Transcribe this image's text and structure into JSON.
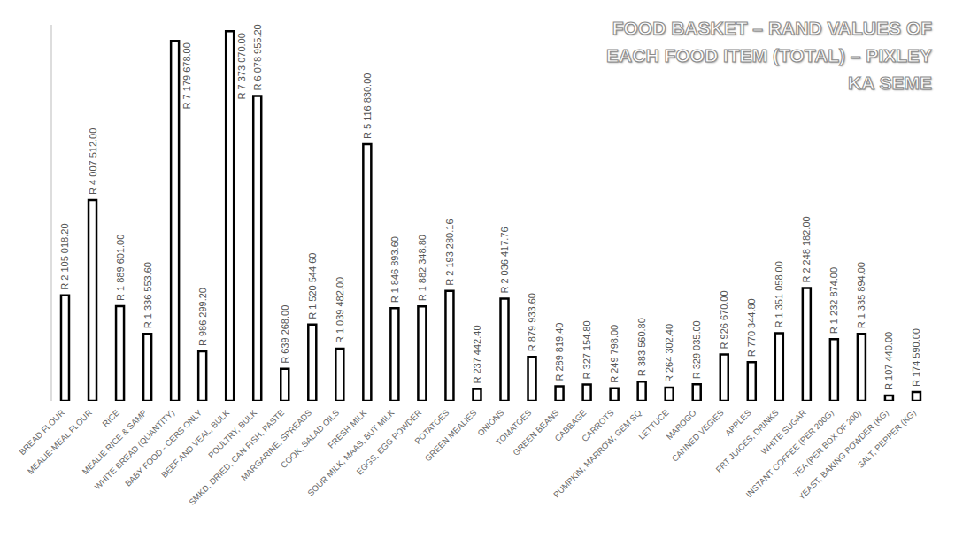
{
  "chart_data": {
    "type": "bar",
    "title": "FOOD BASKET – RAND VALUES OF EACH FOOD ITEM (TOTAL) – PIXLEY KA SEME",
    "categories": [
      "BREAD FLOUR",
      "MEALIE-MEAL FLOUR",
      "RICE",
      "MEALIE RICE & SAMP",
      "WHITE BREAD (QUANTITY)",
      "BABY FOOD - CERS ONLY",
      "BEEF AND VEAL, BULK",
      "POULTRY, BULK",
      "SMKD, DRIED, CAN FISH, PASTE",
      "MARGARINE, SPREADS",
      "COOK, SALAD OILS",
      "FRESH MILK",
      "SOUR MILK, MAAS, BUT MILK",
      "EGGS, EGG POWDER",
      "POTATOES",
      "GREEN MEALIES",
      "ONIONS",
      "TOMATOES",
      "GREEN BEANS",
      "CABBAGE",
      "CARROTS",
      "PUMPKIN, MARROW, GEM SQ",
      "LETTUCE",
      "MAROGO",
      "CANNED VEGIES",
      "APPLES",
      "FRT JUICES, DRINKS",
      "WHITE SUGAR",
      "INSTANT COFFEE (PER 200G)",
      "TEA (PER BOX OF 200)",
      "YEAST, BAKING POWDER (KG)",
      "SALT, PEPPER (KG)"
    ],
    "values": [
      2105018.2,
      4007512,
      1889601,
      1336553.6,
      7179678,
      986299.2,
      7373070,
      6078955.2,
      639268,
      1520544.6,
      1039482,
      5116830,
      1846893.6,
      1882348.8,
      2193280.16,
      237442.4,
      2036417.76,
      879933.6,
      289819.4,
      327154.8,
      249798,
      383560.8,
      264302.4,
      329035,
      926670,
      770344.8,
      1351058,
      2248182,
      1232874,
      1335894,
      107440,
      174590
    ],
    "value_labels": [
      "R 2 105 018.20",
      "R 4 007 512.00",
      "R 1 889 601.00",
      "R 1 336 553.60",
      "R 7 179 678.00",
      "R 986 299.20",
      "R 7 373 070.00",
      "R 6 078 955.20",
      "R 639 268.00",
      "R 1 520 544.60",
      "R 1 039 482.00",
      "R 5 116 830.00",
      "R 1 846 893.60",
      "R 1 882 348.80",
      "R 2 193 280.16",
      "R 237 442.40",
      "R 2 036 417.76",
      "R 879 933.60",
      "R 289 819.40",
      "R 327 154.80",
      "R 249 798.00",
      "R 383 560.80",
      "R 264 302.40",
      "R 329 035.00",
      "R 926 670.00",
      "R 770 344.80",
      "R 1 351 058.00",
      "R 2 248 182.00",
      "R 1 232 874.00",
      "R 1 335 894.00",
      "R 107 440.00",
      "R 174 590.00"
    ],
    "color": "#ffffff",
    "ylim": [
      0,
      7500000
    ],
    "grid": false,
    "data_labels": true,
    "tick_labels": "x"
  }
}
